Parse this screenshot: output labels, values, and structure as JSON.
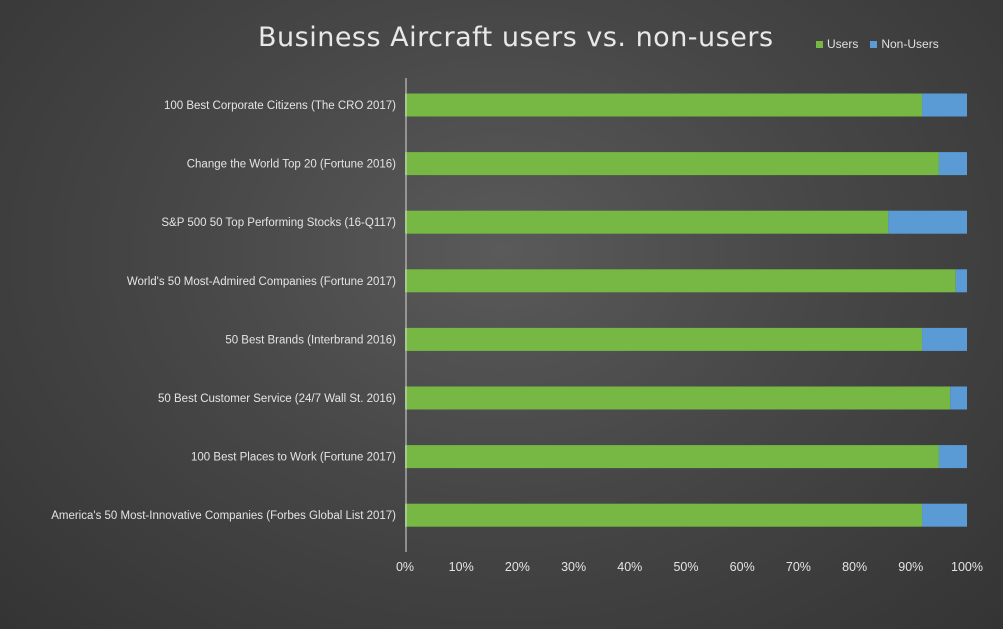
{
  "chart_data": {
    "type": "bar",
    "orientation": "horizontal",
    "stacked": true,
    "title": "Business Aircraft users vs. non-users",
    "xlabel": "",
    "ylabel": "",
    "xlim": [
      0,
      100
    ],
    "x_ticks": [
      "0%",
      "10%",
      "20%",
      "30%",
      "40%",
      "50%",
      "60%",
      "70%",
      "80%",
      "90%",
      "100%"
    ],
    "grid": false,
    "legend_position": "top-right",
    "categories": [
      "100 Best Corporate Citizens (The CRO 2017)",
      "Change the World Top 20 (Fortune 2016)",
      "S&P 500 50 Top Performing Stocks (16-Q117)",
      "World's 50 Most-Admired Companies (Fortune 2017)",
      "50 Best Brands (Interbrand 2016)",
      "50 Best Customer Service (24/7 Wall St. 2016)",
      "100 Best Places to Work (Fortune 2017)",
      "America's 50 Most-Innovative Companies (Forbes Global List 2017)"
    ],
    "series": [
      {
        "name": "Users",
        "color": "#76b843",
        "values": [
          92,
          95,
          86,
          98,
          92,
          97,
          95,
          92
        ]
      },
      {
        "name": "Non-Users",
        "color": "#5b9bd5",
        "values": [
          8,
          5,
          14,
          2,
          8,
          3,
          5,
          8
        ]
      }
    ]
  }
}
